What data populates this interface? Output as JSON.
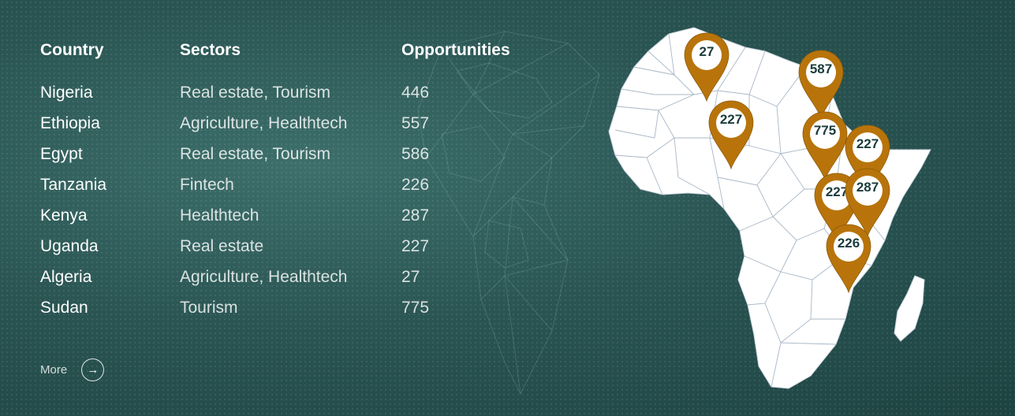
{
  "table": {
    "headers": {
      "country": "Country",
      "sectors": "Sectors",
      "opportunities": "Opportunities"
    },
    "rows": [
      {
        "country": "Nigeria",
        "sectors": "Real estate, Tourism",
        "opportunities": "446"
      },
      {
        "country": "Ethiopia",
        "sectors": "Agriculture, Healthtech",
        "opportunities": "557"
      },
      {
        "country": "Egypt",
        "sectors": "Real estate, Tourism",
        "opportunities": "586"
      },
      {
        "country": "Tanzania",
        "sectors": "Fintech",
        "opportunities": "226"
      },
      {
        "country": "Kenya",
        "sectors": "Healthtech",
        "opportunities": "287"
      },
      {
        "country": "Uganda",
        "sectors": "Real estate",
        "opportunities": "227"
      },
      {
        "country": "Algeria",
        "sectors": "Agriculture, Healthtech",
        "opportunities": "27"
      },
      {
        "country": "Sudan",
        "sectors": "Tourism",
        "opportunities": "775"
      }
    ]
  },
  "more": {
    "label": "More",
    "icon": "arrow-right-circle-icon"
  },
  "map": {
    "icon": "africa-map",
    "pin_color": "#b8740b",
    "pins": [
      {
        "label": "27"
      },
      {
        "label": "587"
      },
      {
        "label": "227"
      },
      {
        "label": "775"
      },
      {
        "label": "227"
      },
      {
        "label": "227"
      },
      {
        "label": "287"
      },
      {
        "label": "226"
      }
    ]
  }
}
